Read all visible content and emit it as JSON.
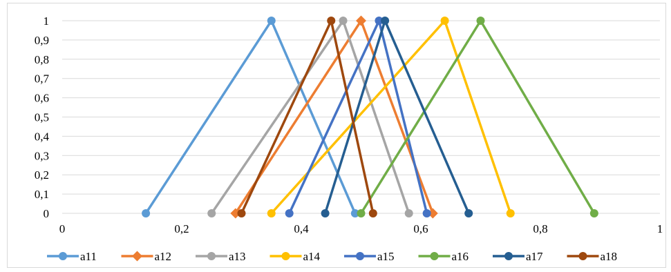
{
  "chart_data": {
    "type": "line",
    "title": "",
    "xlabel": "",
    "ylabel": "",
    "xlim": [
      0,
      1
    ],
    "ylim": [
      0,
      1
    ],
    "grid": true,
    "legend_position": "bottom",
    "x_tick_labels": [
      "0",
      "0,2",
      "0,4",
      "0,6",
      "0,8",
      "1"
    ],
    "y_tick_labels": [
      "0",
      "0,1",
      "0,2",
      "0,3",
      "0,4",
      "0,5",
      "0,6",
      "0,7",
      "0,8",
      "0,9",
      "1"
    ],
    "series": [
      {
        "name": "a11",
        "color": "#5b9bd5",
        "marker": "circle",
        "x": [
          0.14,
          0.35,
          0.49
        ],
        "y": [
          0,
          1,
          0
        ]
      },
      {
        "name": "a12",
        "color": "#ed7d31",
        "marker": "diamond",
        "x": [
          0.29,
          0.5,
          0.62
        ],
        "y": [
          0,
          1,
          0
        ]
      },
      {
        "name": "a13",
        "color": "#a5a5a5",
        "marker": "circle",
        "x": [
          0.25,
          0.47,
          0.58
        ],
        "y": [
          0,
          1,
          0
        ]
      },
      {
        "name": "a14",
        "color": "#ffc000",
        "marker": "circle",
        "x": [
          0.35,
          0.64,
          0.75
        ],
        "y": [
          0,
          1,
          0
        ]
      },
      {
        "name": "a15",
        "color": "#4472c4",
        "marker": "circle",
        "x": [
          0.38,
          0.53,
          0.61
        ],
        "y": [
          0,
          1,
          0
        ]
      },
      {
        "name": "a16",
        "color": "#70ad47",
        "marker": "circle",
        "x": [
          0.5,
          0.7,
          0.89
        ],
        "y": [
          0,
          1,
          0
        ]
      },
      {
        "name": "a17",
        "color": "#255e91",
        "marker": "circle",
        "x": [
          0.44,
          0.54,
          0.68
        ],
        "y": [
          0,
          1,
          0
        ]
      },
      {
        "name": "a18",
        "color": "#9e480e",
        "marker": "circle",
        "x": [
          0.3,
          0.45,
          0.52
        ],
        "y": [
          0,
          1,
          0
        ]
      }
    ]
  }
}
